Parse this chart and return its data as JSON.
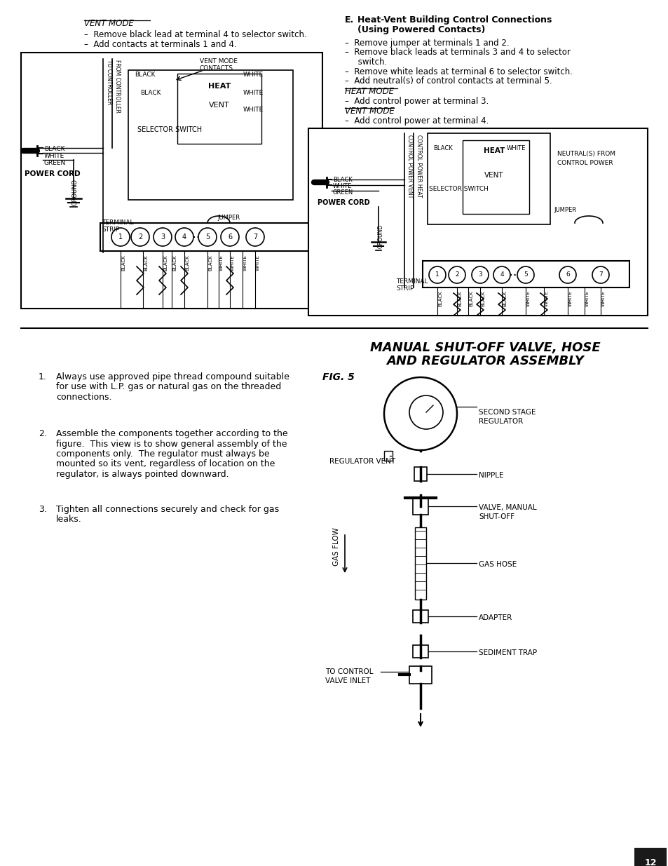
{
  "bg_color": "#ffffff",
  "page_num": "12",
  "vent_mode_hdr": "VENT MODE",
  "vent_bullets": [
    "–  Remove black lead at terminal 4 to selector switch.",
    "–  Add contacts at terminals 1 and 4."
  ],
  "sect_e_label": "E.",
  "sect_e_title1": "Heat-Vent Building Control Connections",
  "sect_e_title2": "(Using Powered Contacts)",
  "sect_e_bullets": [
    "–  Remove jumper at terminals 1 and 2.",
    "–  Remove black leads at terminals 3 and 4 to selector",
    "     switch.",
    "–  Remove white leads at terminal 6 to selector switch.",
    "–  Add neutral(s) of control contacts at terminal 5."
  ],
  "heat_mode_hdr": "HEAT MODE",
  "heat_bullet": "–  Add control power at terminal 3.",
  "vent_mode_hdr2": "VENT MODE",
  "vent_bullet2": "–  Add control power at terminal 4.",
  "title_line1": "MANUAL SHUT-OFF VALVE, HOSE",
  "title_line2": "AND REGULATOR ASSEMBLY",
  "fig_label": "FIG. 5",
  "num_items": [
    [
      "Always use approved pipe thread compound suitable",
      "for use with L.P. gas or natural gas on the threaded",
      "connections."
    ],
    [
      "Assemble the components together according to the",
      "figure.  This view is to show general assembly of the",
      "components only.  The regulator must always be",
      "mounted so its vent, regardless of location on the",
      "regulator, is always pointed downward."
    ],
    [
      "Tighten all connections securely and check for gas",
      "leaks."
    ]
  ],
  "asm_right_labels": [
    "SECOND STAGE\nREGULATOR",
    "NIPPLE",
    "VALVE, MANUAL\nSHUT-OFF",
    "GAS HOSE",
    "ADAPTER",
    "SEDIMENT TRAP"
  ],
  "asm_left1": "REGULATOR VENT",
  "asm_left2": "GAS FLOW",
  "asm_left3": "TO CONTROL\nVALVE INLET"
}
